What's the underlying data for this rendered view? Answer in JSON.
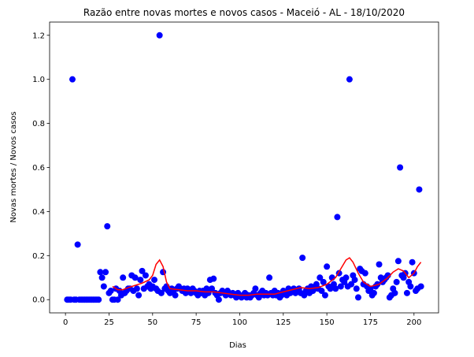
{
  "chart_data": {
    "type": "scatter",
    "title": "Razão entre novas mortes e novos casos - Maceió - AL - 18/10/2020",
    "xlabel": "Dias",
    "ylabel": "Novas mortes / Novos casos",
    "xlim": [
      -9.1,
      214.1
    ],
    "ylim": [
      -0.06,
      1.26
    ],
    "xticks": [
      0,
      25,
      50,
      75,
      100,
      125,
      150,
      175,
      200
    ],
    "yticks": [
      {
        "value": 0,
        "label": "0.0"
      },
      0.2,
      0.4,
      0.6,
      0.8,
      {
        "value": 1,
        "label": "1.0"
      },
      1.2
    ],
    "series": [
      {
        "type": "scatter",
        "color": "#0000ff",
        "x": [
          1,
          2,
          3,
          4,
          5,
          6,
          7,
          8,
          9,
          10,
          11,
          12,
          13,
          14,
          15,
          16,
          17,
          18,
          19,
          20,
          21,
          22,
          23,
          24,
          25,
          26,
          27,
          28,
          29,
          30,
          31,
          32,
          33,
          34,
          35,
          36,
          37,
          38,
          39,
          40,
          41,
          42,
          43,
          44,
          45,
          46,
          47,
          48,
          49,
          50,
          51,
          52,
          53,
          54,
          55,
          56,
          57,
          58,
          59,
          60,
          61,
          62,
          63,
          64,
          65,
          66,
          67,
          68,
          69,
          70,
          71,
          72,
          73,
          74,
          75,
          76,
          77,
          78,
          79,
          80,
          81,
          82,
          83,
          84,
          85,
          86,
          87,
          88,
          89,
          90,
          91,
          92,
          93,
          94,
          95,
          96,
          97,
          98,
          99,
          100,
          101,
          102,
          103,
          104,
          105,
          106,
          107,
          108,
          109,
          110,
          111,
          112,
          113,
          114,
          115,
          116,
          117,
          118,
          119,
          120,
          121,
          122,
          123,
          124,
          125,
          126,
          127,
          128,
          129,
          130,
          131,
          132,
          133,
          134,
          135,
          136,
          137,
          138,
          139,
          140,
          141,
          142,
          143,
          144,
          145,
          146,
          147,
          148,
          149,
          150,
          151,
          152,
          153,
          154,
          155,
          156,
          157,
          158,
          159,
          160,
          161,
          162,
          163,
          164,
          165,
          166,
          167,
          168,
          169,
          170,
          171,
          172,
          173,
          174,
          175,
          176,
          177,
          178,
          179,
          180,
          181,
          182,
          183,
          184,
          185,
          186,
          187,
          188,
          189,
          190,
          191,
          192,
          193,
          194,
          195,
          196,
          197,
          198,
          199,
          200,
          201,
          202,
          203,
          204
        ],
        "values": [
          0,
          0,
          0,
          1.0,
          0,
          0,
          0.25,
          0,
          0,
          0,
          0,
          0,
          0,
          0,
          0,
          0,
          0,
          0,
          0,
          0.125,
          0.1,
          0.06,
          0.125,
          0.333,
          0.03,
          0.04,
          0,
          0,
          0.05,
          0,
          0.04,
          0.02,
          0.1,
          0.03,
          0.04,
          0.05,
          0.05,
          0.11,
          0.04,
          0.1,
          0.05,
          0.02,
          0.09,
          0.13,
          0.05,
          0.11,
          0.06,
          0.07,
          0.05,
          0.06,
          0.09,
          0.05,
          0.04,
          1.2,
          0.03,
          0.125,
          0.05,
          0.06,
          0.04,
          0.03,
          0.05,
          0.04,
          0.02,
          0.05,
          0.06,
          0.05,
          0.04,
          0.05,
          0.03,
          0.05,
          0.04,
          0.03,
          0.05,
          0.04,
          0.03,
          0.02,
          0.04,
          0.03,
          0.04,
          0.02,
          0.05,
          0.03,
          0.09,
          0.05,
          0.095,
          0.03,
          0.02,
          0.0,
          0.03,
          0.04,
          0.03,
          0.02,
          0.04,
          0.03,
          0.02,
          0.03,
          0.02,
          0.01,
          0.03,
          0.02,
          0.01,
          0.02,
          0.03,
          0.01,
          0.02,
          0.01,
          0.02,
          0.03,
          0.05,
          0.02,
          0.01,
          0.03,
          0.04,
          0.02,
          0.03,
          0.02,
          0.1,
          0.03,
          0.02,
          0.04,
          0.02,
          0.03,
          0.01,
          0.02,
          0.04,
          0.03,
          0.02,
          0.05,
          0.03,
          0.04,
          0.05,
          0.03,
          0.04,
          0.05,
          0.03,
          0.19,
          0.02,
          0.04,
          0.05,
          0.03,
          0.06,
          0.04,
          0.05,
          0.07,
          0.05,
          0.1,
          0.04,
          0.08,
          0.02,
          0.15,
          0.06,
          0.05,
          0.1,
          0.07,
          0.05,
          0.375,
          0.12,
          0.06,
          0.09,
          0.08,
          0.1,
          0.06,
          1.0,
          0.07,
          0.11,
          0.09,
          0.05,
          0.01,
          0.14,
          0.13,
          0.07,
          0.12,
          0.06,
          0.04,
          0.05,
          0.02,
          0.03,
          0.06,
          0.07,
          0.16,
          0.1,
          0.08,
          0.09,
          0.1,
          0.11,
          0.01,
          0.02,
          0.05,
          0.03,
          0.08,
          0.175,
          0.6,
          0.11,
          0.1,
          0.12,
          0.03,
          0.08,
          0.06,
          0.17,
          0.12,
          0.04,
          0.05,
          0.5,
          0.06
        ]
      },
      {
        "type": "line",
        "color": "#ff0000",
        "x": [
          27,
          30,
          33,
          36,
          40,
          44,
          48,
          50,
          52,
          54,
          56,
          58,
          60,
          65,
          70,
          75,
          80,
          85,
          90,
          95,
          100,
          105,
          110,
          115,
          120,
          125,
          130,
          135,
          140,
          145,
          150,
          155,
          158,
          161,
          163,
          165,
          168,
          171,
          175,
          180,
          185,
          188,
          191,
          194,
          197,
          200,
          202,
          204
        ],
        "values": [
          0.06,
          0.045,
          0.045,
          0.055,
          0.065,
          0.075,
          0.09,
          0.11,
          0.16,
          0.18,
          0.15,
          0.08,
          0.05,
          0.045,
          0.04,
          0.04,
          0.035,
          0.035,
          0.03,
          0.025,
          0.02,
          0.02,
          0.025,
          0.025,
          0.025,
          0.035,
          0.045,
          0.055,
          0.05,
          0.055,
          0.07,
          0.1,
          0.14,
          0.18,
          0.19,
          0.17,
          0.12,
          0.08,
          0.06,
          0.07,
          0.1,
          0.125,
          0.14,
          0.13,
          0.1,
          0.12,
          0.15,
          0.17
        ]
      }
    ]
  }
}
